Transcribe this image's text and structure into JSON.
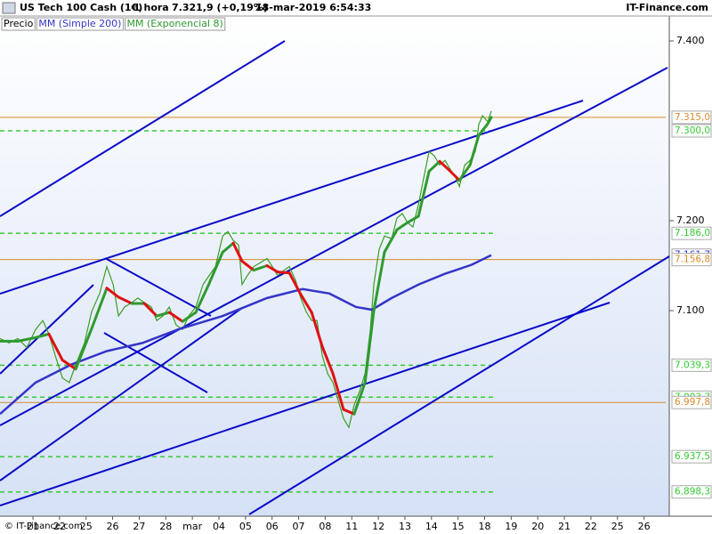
{
  "header": {
    "instrument": "US Tech 100 Cash (1€)",
    "timeframe": "1 hora",
    "quote": "7.321,9 (+0,19%)",
    "datetime": "18-mar-2019 6:54:33",
    "site": "IT-Finance.com"
  },
  "chart_data": {
    "type": "line",
    "categories": [
      "21",
      "22",
      "25",
      "26",
      "27",
      "28",
      "mar",
      "04",
      "05",
      "06",
      "07",
      "08",
      "11",
      "12",
      "13",
      "14",
      "15",
      "18",
      "19",
      "20",
      "21",
      "22",
      "25",
      "26"
    ],
    "xlim": [
      -1.24,
      23.95
    ],
    "ylim": [
      6873.3,
      7409.9
    ],
    "yticks": [
      {
        "value": 7400,
        "label": "7.400"
      },
      {
        "value": 7200,
        "label": "7.200"
      },
      {
        "value": 7100,
        "label": "7.100"
      }
    ],
    "series": [
      {
        "name": "Precio",
        "color": "#3c9c28",
        "x": [
          -1.24,
          -0.9,
          -0.57,
          -0.23,
          0.1,
          0.37,
          0.6,
          0.84,
          1.11,
          1.37,
          1.61,
          1.94,
          2.21,
          2.51,
          2.78,
          3.02,
          3.22,
          3.45,
          3.72,
          3.95,
          4.19,
          4.46,
          4.66,
          4.89,
          5.13,
          5.39,
          5.63,
          5.86,
          6.13,
          6.4,
          6.63,
          6.87,
          7.14,
          7.34,
          7.54,
          7.74,
          7.87,
          8.07,
          8.31,
          8.54,
          8.81,
          9.01,
          9.21,
          9.41,
          9.65,
          9.88,
          10.08,
          10.28,
          10.49,
          10.69,
          10.89,
          11.09,
          11.29,
          11.49,
          11.69,
          11.89,
          12.09,
          12.29,
          12.5,
          12.7,
          12.83,
          13.03,
          13.23,
          13.5,
          13.7,
          13.9,
          14.1,
          14.3,
          14.51,
          14.71,
          14.91,
          15.11,
          15.31,
          15.51,
          15.71,
          15.91,
          16.05,
          16.25,
          16.45,
          16.65,
          16.78,
          16.92,
          17.12,
          17.25
        ],
        "values": [
          7069,
          7064,
          7069,
          7059,
          7079,
          7089,
          7074,
          7050,
          7025,
          7020,
          7040,
          7064,
          7099,
          7119,
          7149,
          7129,
          7094,
          7104,
          7109,
          7114,
          7109,
          7104,
          7089,
          7094,
          7104,
          7084,
          7079,
          7094,
          7104,
          7129,
          7139,
          7149,
          7183,
          7188,
          7178,
          7173,
          7129,
          7139,
          7149,
          7153,
          7158,
          7149,
          7139,
          7144,
          7149,
          7134,
          7114,
          7099,
          7089,
          7089,
          7050,
          7030,
          7020,
          7000,
          6980,
          6970,
          6995,
          7010,
          7030,
          7079,
          7129,
          7168,
          7183,
          7180,
          7203,
          7208,
          7198,
          7193,
          7218,
          7248,
          7277,
          7272,
          7262,
          7267,
          7257,
          7248,
          7238,
          7262,
          7267,
          7277,
          7307,
          7317,
          7310,
          7322
        ]
      },
      {
        "name": "MM (Simple 200)",
        "color": "#3535c8",
        "x": [
          -1.24,
          0.1,
          1.44,
          2.78,
          4.12,
          5.46,
          7.14,
          8.81,
          10.15,
          11.16,
          12.16,
          12.76,
          13.5,
          14.51,
          15.51,
          16.51,
          17.25
        ],
        "values": [
          6985,
          7020,
          7040,
          7055,
          7064,
          7079,
          7094,
          7114,
          7124,
          7119,
          7104,
          7101,
          7114,
          7129,
          7141,
          7151,
          7161.7
        ]
      },
      {
        "name": "MM (Exponencial 8)",
        "color": "#2f9a2f",
        "down_color": "#e01010",
        "x": [
          -1.24,
          -0.57,
          0.1,
          0.6,
          1.11,
          1.61,
          2.21,
          2.78,
          3.22,
          3.72,
          4.19,
          4.66,
          5.13,
          5.63,
          6.13,
          6.63,
          7.14,
          7.54,
          7.87,
          8.31,
          8.81,
          9.21,
          9.65,
          10.08,
          10.49,
          10.89,
          11.29,
          11.69,
          12.09,
          12.5,
          12.83,
          13.23,
          13.7,
          14.1,
          14.51,
          14.91,
          15.31,
          15.71,
          16.05,
          16.45,
          16.78,
          17.12,
          17.25
        ],
        "values": [
          7066,
          7066,
          7070,
          7074,
          7045,
          7035,
          7080,
          7125,
          7115,
          7108,
          7108,
          7094,
          7098,
          7088,
          7098,
          7130,
          7165,
          7175,
          7155,
          7145,
          7150,
          7143,
          7142,
          7118,
          7098,
          7060,
          7030,
          6990,
          6985,
          7020,
          7100,
          7165,
          7190,
          7198,
          7205,
          7255,
          7266,
          7255,
          7245,
          7262,
          7295,
          7308,
          7315
        ]
      }
    ],
    "levels": [
      {
        "value": 7315.0,
        "label": "7.315,0",
        "color": "#d88a2a",
        "style": "solid"
      },
      {
        "value": 7300.0,
        "label": "7.300,0",
        "color": "#33cc33",
        "style": "dashed"
      },
      {
        "value": 7186.0,
        "label": "7.186,0",
        "color": "#33cc33",
        "style": "dashed"
      },
      {
        "value": 7161.7,
        "label": "7.161,7",
        "color": "#3535c8",
        "style": "none"
      },
      {
        "value": 7156.8,
        "label": "7.156,8",
        "color": "#d88a2a",
        "style": "solid"
      },
      {
        "value": 7039.3,
        "label": "7.039,3",
        "color": "#33cc33",
        "style": "dashed"
      },
      {
        "value": 7003.7,
        "label": "7.003,7",
        "color": "#33cc33",
        "style": "dashed"
      },
      {
        "value": 6997.8,
        "label": "6.997,8",
        "color": "#d88a2a",
        "style": "solid"
      },
      {
        "value": 6937.5,
        "label": "6.937,5",
        "color": "#33cc33",
        "style": "dashed"
      },
      {
        "value": 6898.3,
        "label": "6.898,3",
        "color": "#33cc33",
        "style": "dashed"
      }
    ]
  },
  "footer": "© IT-Finance.com"
}
